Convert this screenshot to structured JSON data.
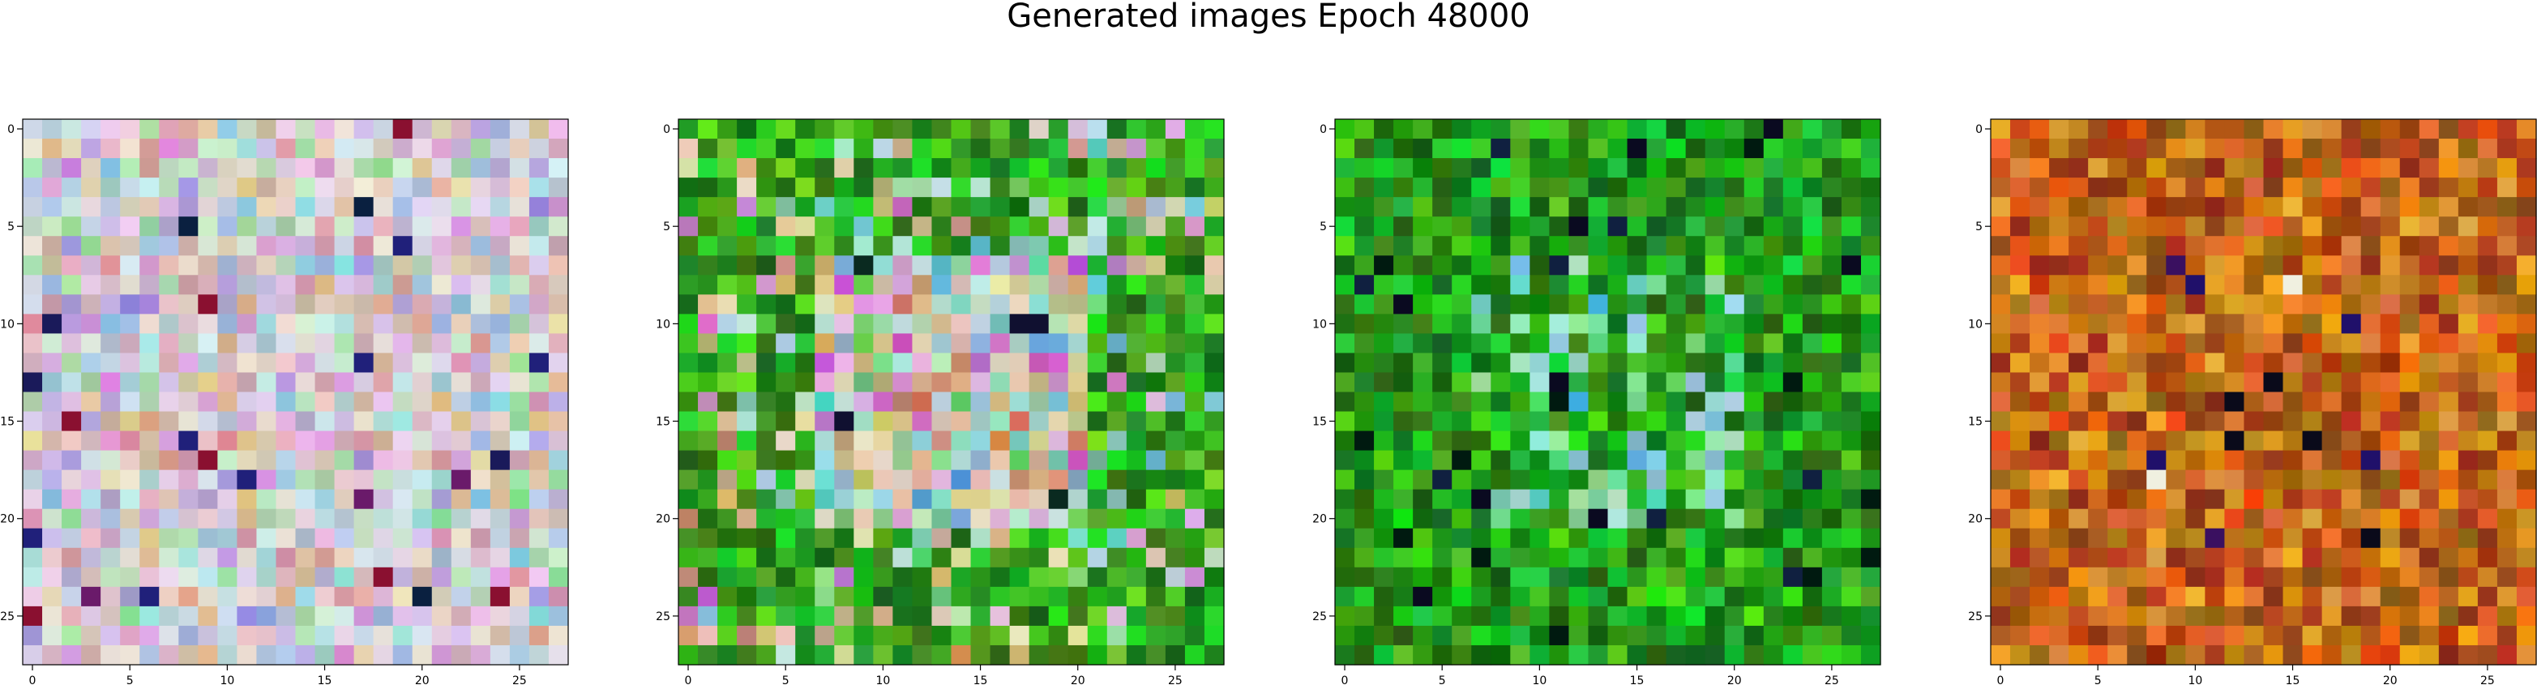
{
  "figure_title": "Generated images Epoch 48000",
  "chart_data": {
    "type": "heatmap",
    "title": "Generated images Epoch 48000",
    "grid": false,
    "images": [
      {
        "name": "",
        "palette": "pastel",
        "grid_size": [
          28,
          28
        ],
        "xlim": [
          -0.5,
          27.5
        ],
        "ylim": [
          27.5,
          -0.5
        ],
        "xticks": [
          0,
          5,
          10,
          15,
          20,
          25
        ],
        "yticks": [
          0,
          5,
          10,
          15,
          20,
          25
        ]
      },
      {
        "name": "",
        "palette": "green-pastel",
        "grid_size": [
          28,
          28
        ],
        "xlim": [
          -0.5,
          27.5
        ],
        "ylim": [
          27.5,
          -0.5
        ],
        "xticks": [
          0,
          5,
          10,
          15,
          20,
          25
        ],
        "yticks": [
          0,
          5,
          10,
          15,
          20,
          25
        ]
      },
      {
        "name": "",
        "palette": "green",
        "grid_size": [
          28,
          28
        ],
        "xlim": [
          -0.5,
          27.5
        ],
        "ylim": [
          27.5,
          -0.5
        ],
        "xticks": [
          0,
          5,
          10,
          15,
          20,
          25
        ],
        "yticks": [
          0,
          5,
          10,
          15,
          20,
          25
        ]
      },
      {
        "name": "",
        "palette": "orange",
        "grid_size": [
          28,
          28
        ],
        "xlim": [
          -0.5,
          27.5
        ],
        "ylim": [
          27.5,
          -0.5
        ],
        "xticks": [
          0,
          5,
          10,
          15,
          20,
          25
        ],
        "yticks": [
          0,
          5,
          10,
          15,
          20,
          25
        ]
      }
    ]
  }
}
